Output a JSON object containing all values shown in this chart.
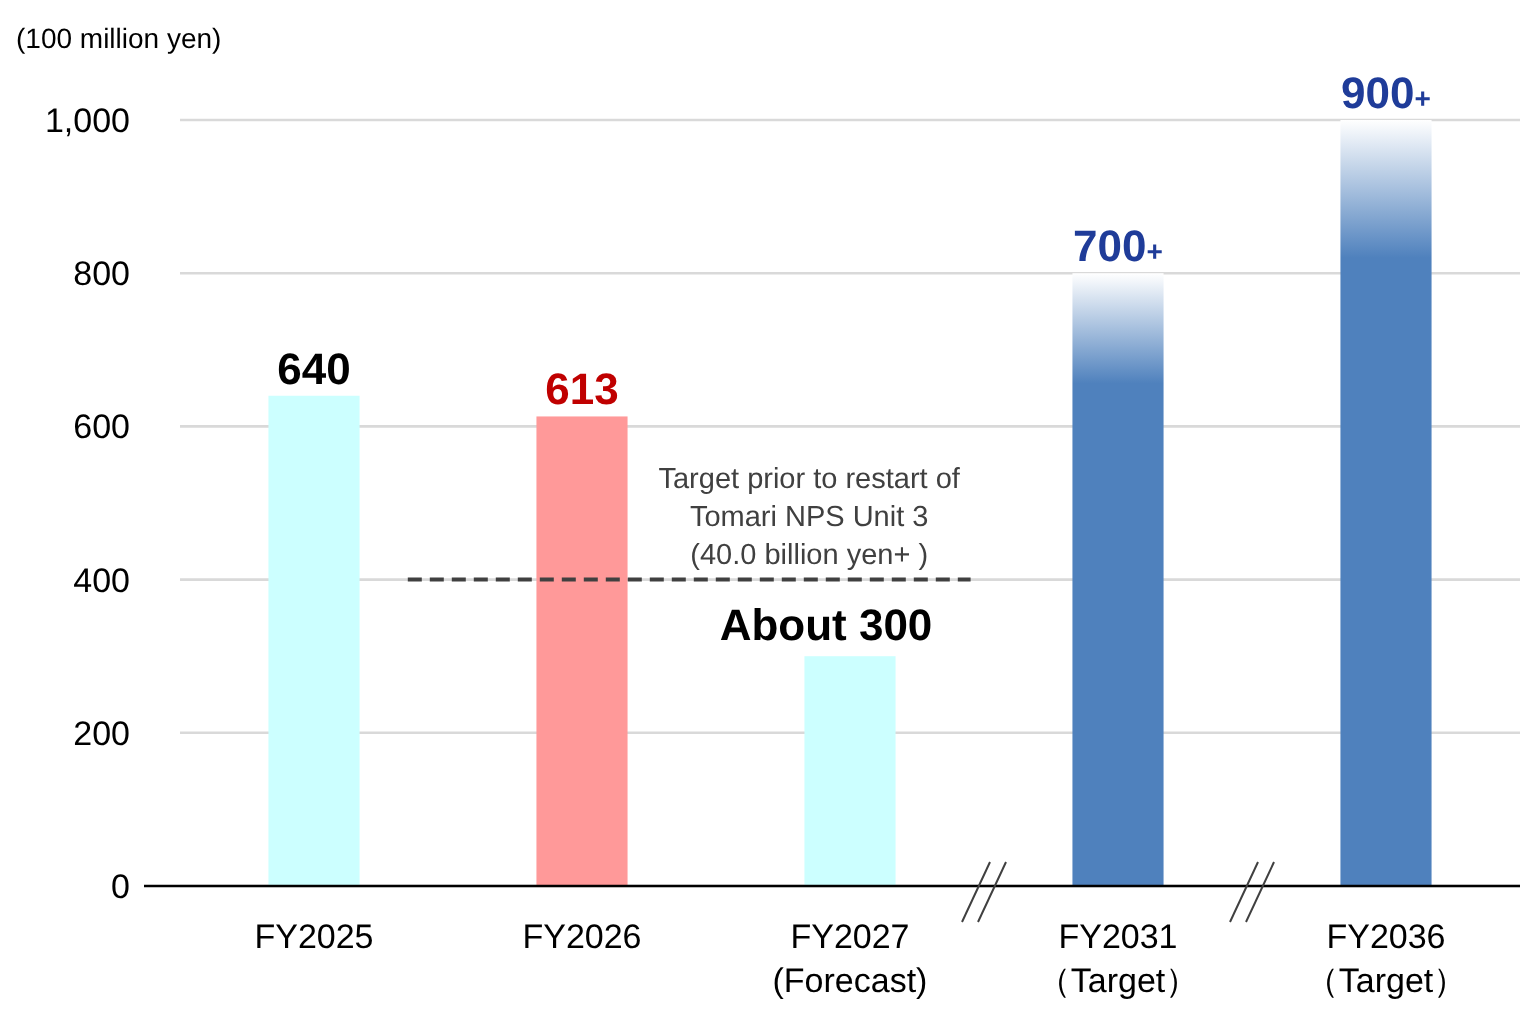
{
  "chart_data": {
    "type": "bar",
    "ylabel": "(100 million yen)",
    "categories": [
      "FY2025",
      "FY2026",
      "FY2027\n(Forecast)",
      "FY2031\n（Target）",
      "FY2036\n（Target）"
    ],
    "values": [
      640,
      613,
      300,
      800,
      1000
    ],
    "colors": [
      "#ccffff",
      "#ff9999",
      "#ccffff",
      "#4f81bd",
      "#4f81bd"
    ],
    "value_labels": [
      "640",
      "613",
      "About 300",
      "700+",
      "900+"
    ],
    "ylim": [
      0,
      1000
    ],
    "yticks": [
      0,
      200,
      400,
      600,
      800,
      {
        "value": 1000,
        "label": "1,000"
      }
    ],
    "grid": "y",
    "ref_lines": [
      {
        "axis": "y",
        "value": 400,
        "label": "Target prior to restart of\nTomari NPS Unit 3\n(40.0 billion yen+ )",
        "color": "#404040",
        "line_style": "dashed"
      }
    ]
  }
}
